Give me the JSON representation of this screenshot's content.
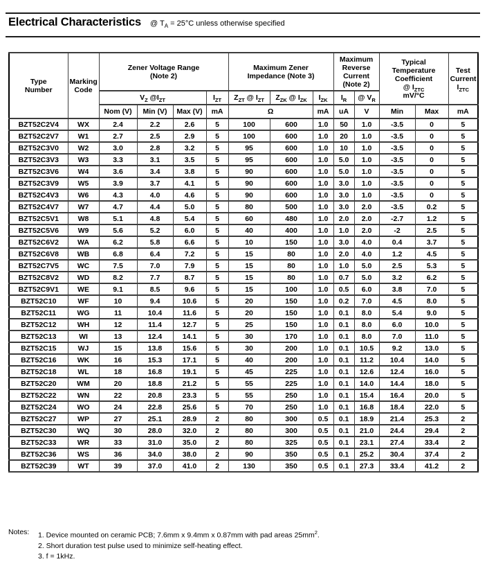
{
  "header": {
    "title": "Electrical Characteristics",
    "subtitle": "@ T_{A} = 25°C unless otherwise specified"
  },
  "table": {
    "group_headers": {
      "type_number": "Type\nNumber",
      "marking_code": "Marking\nCode",
      "zener_voltage_range": "Zener Voltage Range\n(Note 2)",
      "max_zener_impedance": "Maximum Zener\nImpedance (Note 3)",
      "max_reverse_current": "Maximum\nReverse\nCurrent\n(Note 2)",
      "typ_temp_coeff": "Typical\nTemperature\nCoefficient\n@ I_{ZTC}\nmV/°C",
      "test_current": "Test\nCurrent\nI_{ZTC}"
    },
    "sub_headers": {
      "vz_izt": "V_{Z} @I_{ZT}",
      "izt": "I_{ZT}",
      "zzt_izt": "Z_{ZT} @ I_{ZT}",
      "zzk_izk": "Z_{ZK} @ I_{ZK}",
      "izk": "I_{ZK}",
      "ir": "I_{R}",
      "at_vr": "@ V_{R}"
    },
    "unit_headers": {
      "nom_v": "Nom (V)",
      "min_v": "Min (V)",
      "max_v": "Max (V)",
      "izt_unit": "mA",
      "impedance_unit": "Ω",
      "izk_unit": "mA",
      "ir_unit": "uA",
      "vr_unit": "V",
      "tc_min": "Min",
      "tc_max": "Max",
      "test_unit": "mA"
    },
    "rows": [
      [
        "BZT52C2V4",
        "WX",
        "2.4",
        "2.2",
        "2.6",
        "5",
        "100",
        "600",
        "1.0",
        "50",
        "1.0",
        "-3.5",
        "0",
        "5"
      ],
      [
        "BZT52C2V7",
        "W1",
        "2.7",
        "2.5",
        "2.9",
        "5",
        "100",
        "600",
        "1.0",
        "20",
        "1.0",
        "-3.5",
        "0",
        "5"
      ],
      [
        "BZT52C3V0",
        "W2",
        "3.0",
        "2.8",
        "3.2",
        "5",
        "95",
        "600",
        "1.0",
        "10",
        "1.0",
        "-3.5",
        "0",
        "5"
      ],
      [
        "BZT52C3V3",
        "W3",
        "3.3",
        "3.1",
        "3.5",
        "5",
        "95",
        "600",
        "1.0",
        "5.0",
        "1.0",
        "-3.5",
        "0",
        "5"
      ],
      [
        "BZT52C3V6",
        "W4",
        "3.6",
        "3.4",
        "3.8",
        "5",
        "90",
        "600",
        "1.0",
        "5.0",
        "1.0",
        "-3.5",
        "0",
        "5"
      ],
      [
        "BZT52C3V9",
        "W5",
        "3.9",
        "3.7",
        "4.1",
        "5",
        "90",
        "600",
        "1.0",
        "3.0",
        "1.0",
        "-3.5",
        "0",
        "5"
      ],
      [
        "BZT52C4V3",
        "W6",
        "4.3",
        "4.0",
        "4.6",
        "5",
        "90",
        "600",
        "1.0",
        "3.0",
        "1.0",
        "-3.5",
        "0",
        "5"
      ],
      [
        "BZT52C4V7",
        "W7",
        "4.7",
        "4.4",
        "5.0",
        "5",
        "80",
        "500",
        "1.0",
        "3.0",
        "2.0",
        "-3.5",
        "0.2",
        "5"
      ],
      [
        "BZT52C5V1",
        "W8",
        "5.1",
        "4.8",
        "5.4",
        "5",
        "60",
        "480",
        "1.0",
        "2.0",
        "2.0",
        "-2.7",
        "1.2",
        "5"
      ],
      [
        "BZT52C5V6",
        "W9",
        "5.6",
        "5.2",
        "6.0",
        "5",
        "40",
        "400",
        "1.0",
        "1.0",
        "2.0",
        "-2",
        "2.5",
        "5"
      ],
      [
        "BZT52C6V2",
        "WA",
        "6.2",
        "5.8",
        "6.6",
        "5",
        "10",
        "150",
        "1.0",
        "3.0",
        "4.0",
        "0.4",
        "3.7",
        "5"
      ],
      [
        "BZT52C6V8",
        "WB",
        "6.8",
        "6.4",
        "7.2",
        "5",
        "15",
        "80",
        "1.0",
        "2.0",
        "4.0",
        "1.2",
        "4.5",
        "5"
      ],
      [
        "BZT52C7V5",
        "WC",
        "7.5",
        "7.0",
        "7.9",
        "5",
        "15",
        "80",
        "1.0",
        "1.0",
        "5.0",
        "2.5",
        "5.3",
        "5"
      ],
      [
        "BZT52C8V2",
        "WD",
        "8.2",
        "7.7",
        "8.7",
        "5",
        "15",
        "80",
        "1.0",
        "0.7",
        "5.0",
        "3.2",
        "6.2",
        "5"
      ],
      [
        "BZT52C9V1",
        "WE",
        "9.1",
        "8.5",
        "9.6",
        "5",
        "15",
        "100",
        "1.0",
        "0.5",
        "6.0",
        "3.8",
        "7.0",
        "5"
      ],
      [
        "BZT52C10",
        "WF",
        "10",
        "9.4",
        "10.6",
        "5",
        "20",
        "150",
        "1.0",
        "0.2",
        "7.0",
        "4.5",
        "8.0",
        "5"
      ],
      [
        "BZT52C11",
        "WG",
        "11",
        "10.4",
        "11.6",
        "5",
        "20",
        "150",
        "1.0",
        "0.1",
        "8.0",
        "5.4",
        "9.0",
        "5"
      ],
      [
        "BZT52C12",
        "WH",
        "12",
        "11.4",
        "12.7",
        "5",
        "25",
        "150",
        "1.0",
        "0.1",
        "8.0",
        "6.0",
        "10.0",
        "5"
      ],
      [
        "BZT52C13",
        "WI",
        "13",
        "12.4",
        "14.1",
        "5",
        "30",
        "170",
        "1.0",
        "0.1",
        "8.0",
        "7.0",
        "11.0",
        "5"
      ],
      [
        "BZT52C15",
        "WJ",
        "15",
        "13.8",
        "15.6",
        "5",
        "30",
        "200",
        "1.0",
        "0.1",
        "10.5",
        "9.2",
        "13.0",
        "5"
      ],
      [
        "BZT52C16",
        "WK",
        "16",
        "15.3",
        "17.1",
        "5",
        "40",
        "200",
        "1.0",
        "0.1",
        "11.2",
        "10.4",
        "14.0",
        "5"
      ],
      [
        "BZT52C18",
        "WL",
        "18",
        "16.8",
        "19.1",
        "5",
        "45",
        "225",
        "1.0",
        "0.1",
        "12.6",
        "12.4",
        "16.0",
        "5"
      ],
      [
        "BZT52C20",
        "WM",
        "20",
        "18.8",
        "21.2",
        "5",
        "55",
        "225",
        "1.0",
        "0.1",
        "14.0",
        "14.4",
        "18.0",
        "5"
      ],
      [
        "BZT52C22",
        "WN",
        "22",
        "20.8",
        "23.3",
        "5",
        "55",
        "250",
        "1.0",
        "0.1",
        "15.4",
        "16.4",
        "20.0",
        "5"
      ],
      [
        "BZT52C24",
        "WO",
        "24",
        "22.8",
        "25.6",
        "5",
        "70",
        "250",
        "1.0",
        "0.1",
        "16.8",
        "18.4",
        "22.0",
        "5"
      ],
      [
        "BZT52C27",
        "WP",
        "27",
        "25.1",
        "28.9",
        "2",
        "80",
        "300",
        "0.5",
        "0.1",
        "18.9",
        "21.4",
        "25.3",
        "2"
      ],
      [
        "BZT52C30",
        "WQ",
        "30",
        "28.0",
        "32.0",
        "2",
        "80",
        "300",
        "0.5",
        "0.1",
        "21.0",
        "24.4",
        "29.4",
        "2"
      ],
      [
        "BZT52C33",
        "WR",
        "33",
        "31.0",
        "35.0",
        "2",
        "80",
        "325",
        "0.5",
        "0.1",
        "23.1",
        "27.4",
        "33.4",
        "2"
      ],
      [
        "BZT52C36",
        "WS",
        "36",
        "34.0",
        "38.0",
        "2",
        "90",
        "350",
        "0.5",
        "0.1",
        "25.2",
        "30.4",
        "37.4",
        "2"
      ],
      [
        "BZT52C39",
        "WT",
        "39",
        "37.0",
        "41.0",
        "2",
        "130",
        "350",
        "0.5",
        "0.1",
        "27.3",
        "33.4",
        "41.2",
        "2"
      ]
    ]
  },
  "notes": {
    "label": "Notes:",
    "items": [
      "1. Device mounted on ceramic PCB; 7.6mm x 9.4mm x 0.87mm with pad areas 25mm^{2}.",
      "2. Short duration test pulse used to minimize self-heating effect.",
      "3. f = 1kHz."
    ]
  }
}
